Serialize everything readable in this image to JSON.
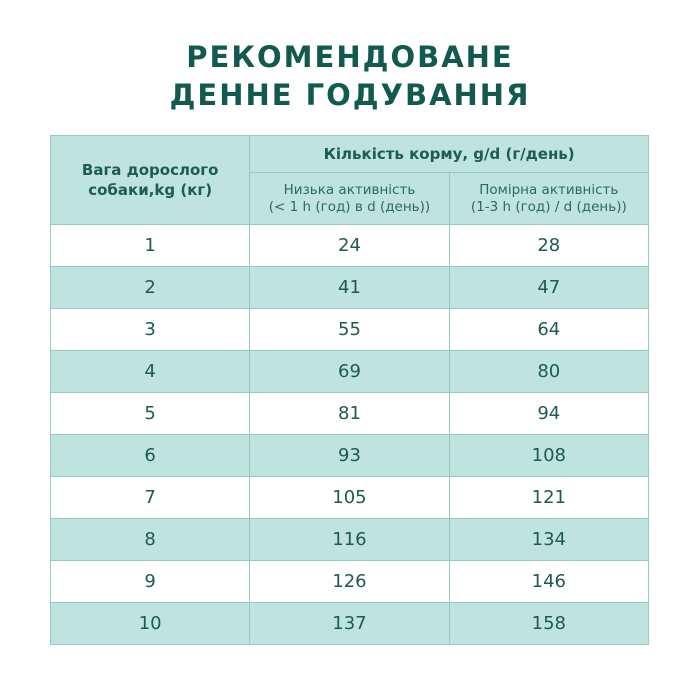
{
  "title": {
    "line1": "РЕКОМЕНДОВАНЕ",
    "line2": "ДЕННЕ ГОДУВАННЯ"
  },
  "table": {
    "headers": {
      "weight": "Вага дорослого собаки,kg (кг)",
      "amount": "Кількість корму, g/d (г/день)",
      "low_activity_line1": "Низька активність",
      "low_activity_line2": "(< 1 h (год) в d (день))",
      "moderate_activity_line1": "Помірна активність",
      "moderate_activity_line2": "(1-3 h (год) / d (день))"
    },
    "rows": [
      {
        "weight": "1",
        "low": "24",
        "moderate": "28"
      },
      {
        "weight": "2",
        "low": "41",
        "moderate": "47"
      },
      {
        "weight": "3",
        "low": "55",
        "moderate": "64"
      },
      {
        "weight": "4",
        "low": "69",
        "moderate": "80"
      },
      {
        "weight": "5",
        "low": "81",
        "moderate": "94"
      },
      {
        "weight": "6",
        "low": "93",
        "moderate": "108"
      },
      {
        "weight": "7",
        "low": "105",
        "moderate": "121"
      },
      {
        "weight": "8",
        "low": "116",
        "moderate": "134"
      },
      {
        "weight": "9",
        "low": "126",
        "moderate": "146"
      },
      {
        "weight": "10",
        "low": "137",
        "moderate": "158"
      }
    ]
  },
  "colors": {
    "title": "#12594f",
    "header_bg": "#bfe3de",
    "border": "#95cbc3",
    "text": "#1e5a52"
  }
}
